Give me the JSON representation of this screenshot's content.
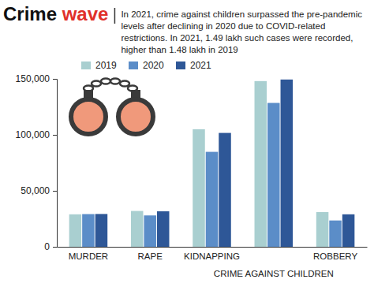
{
  "chart_data": {
    "type": "bar",
    "title": "Crime wave",
    "subtitle": "In 2021, crime against children surpassed the pre-pandemic levels after declining in 2020 due to COVID-related restrictions. In 2021, 1.49 lakh such cases were recorded, higher than 1.48 lakh in 2019",
    "categories": [
      "MURDER",
      "RAPE",
      "KIDNAPPING",
      "CRIME AGAINST CHILDREN",
      "ROBBERY"
    ],
    "series": [
      {
        "name": "2019",
        "color": "#a9cfd0",
        "values": [
          29000,
          32000,
          105000,
          148000,
          31000
        ]
      },
      {
        "name": "2020",
        "color": "#5b8dc8",
        "values": [
          29200,
          28000,
          84800,
          128500,
          23500
        ]
      },
      {
        "name": "2021",
        "color": "#2e5797",
        "values": [
          29300,
          31700,
          101700,
          149400,
          29000
        ]
      }
    ],
    "ylim": [
      0,
      150000
    ],
    "yticks": [
      0,
      {
        "value": 50000,
        "label": "50,000"
      },
      {
        "value": 100000,
        "label": "100,000"
      },
      {
        "value": 150000,
        "label": "150,000"
      }
    ],
    "grid": false,
    "legend": "top"
  }
}
